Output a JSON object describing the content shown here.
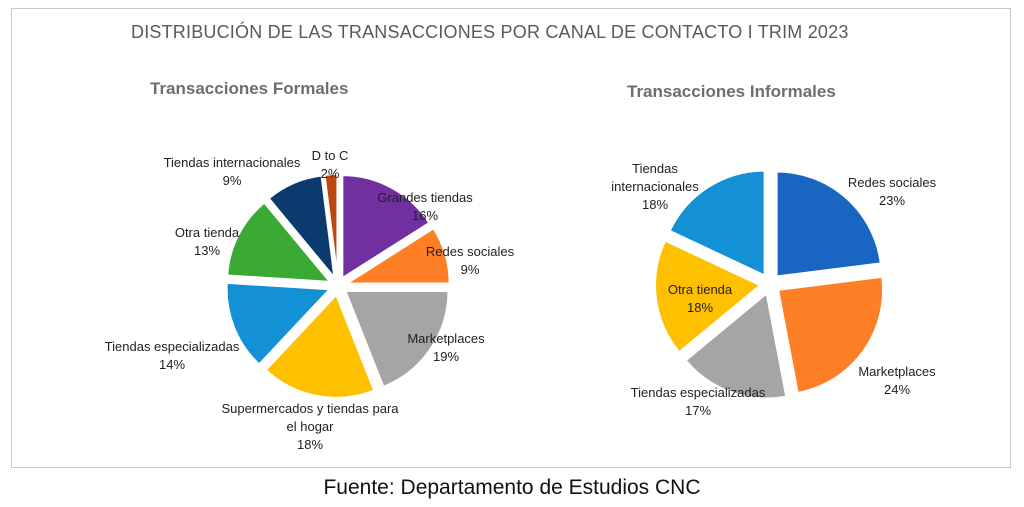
{
  "title": "DISTRIBUCIÓN DE LAS TRANSACCIONES  POR CANAL DE CONTACTO I TRIM 2023",
  "source": "Fuente: Departamento de Estudios CNC",
  "chart_data": [
    {
      "type": "pie",
      "title": "Transacciones Formales",
      "slices": [
        {
          "name": "Grandes tiendas",
          "value": 16,
          "label": "16%",
          "color": "#7030A0"
        },
        {
          "name": "Redes sociales",
          "value": 9,
          "label": "9%",
          "color": "#FF7F27"
        },
        {
          "name": "Marketplaces",
          "value": 19,
          "label": "19%",
          "color": "#A5A5A5"
        },
        {
          "name": "Supermercados y tiendas para el hogar",
          "value": 18,
          "label": "18%",
          "color": "#FFC000"
        },
        {
          "name": "Tiendas especializadas",
          "value": 14,
          "label": "14%",
          "color": "#1490D4"
        },
        {
          "name": "Otra tienda",
          "value": 13,
          "label": "13%",
          "color": "#3AAA35"
        },
        {
          "name": "Tiendas internacionales",
          "value": 9,
          "label": "9%",
          "color": "#0B3A6E"
        },
        {
          "name": "D to C",
          "value": 2,
          "label": "2%",
          "color": "#C0470B"
        }
      ]
    },
    {
      "type": "pie",
      "title": "Transacciones Informales",
      "slices": [
        {
          "name": "Redes sociales",
          "value": 23,
          "label": "23%",
          "color": "#1865C2"
        },
        {
          "name": "Marketplaces",
          "value": 24,
          "label": "24%",
          "color": "#FF7F27"
        },
        {
          "name": "Tiendas especializadas",
          "value": 17,
          "label": "17%",
          "color": "#A5A5A5"
        },
        {
          "name": "Otra tienda",
          "value": 18,
          "label": "18%",
          "color": "#FFC000"
        },
        {
          "name": "Tiendas internacionales",
          "value": 18,
          "label": "18%",
          "color": "#1490D4"
        }
      ]
    }
  ]
}
